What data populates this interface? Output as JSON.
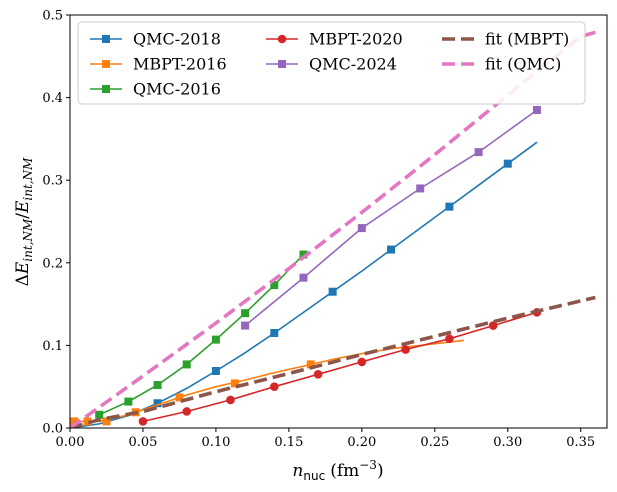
{
  "chart_data": {
    "type": "line",
    "xlabel_main": "n",
    "xlabel_sub": "nuc",
    "xlabel_unit": "(fm",
    "xlabel_exp": "−3",
    "xlabel_close": ")",
    "ylabel": "ΔE_{int,NM}/E_{int,NM}",
    "ylabel_delta": "Δ",
    "ylabel_E1": "E",
    "ylabel_sub1": "int,NM",
    "ylabel_slash": "/",
    "ylabel_E2": "E",
    "ylabel_sub2": "int,NM",
    "xlim": [
      0,
      0.368
    ],
    "ylim": [
      0,
      0.5
    ],
    "xticks": [
      0.0,
      0.05,
      0.1,
      0.15,
      0.2,
      0.25,
      0.3,
      0.35
    ],
    "xtick_labels": [
      "0.00",
      "0.05",
      "0.10",
      "0.15",
      "0.20",
      "0.25",
      "0.30",
      "0.35"
    ],
    "yticks": [
      0.0,
      0.1,
      0.2,
      0.3,
      0.4,
      0.5
    ],
    "ytick_labels": [
      "0.0",
      "0.1",
      "0.2",
      "0.3",
      "0.4",
      "0.5"
    ],
    "grid": false,
    "legend_position": "top",
    "series": [
      {
        "name": "QMC-2018",
        "color": "#1f77b4",
        "marker": "square",
        "style": "solid",
        "line_x": [
          0.0,
          0.02,
          0.04,
          0.06,
          0.08,
          0.1,
          0.12,
          0.14,
          0.16,
          0.18,
          0.2,
          0.22,
          0.24,
          0.26,
          0.28,
          0.3,
          0.32
        ],
        "line_y": [
          0.0,
          0.005,
          0.015,
          0.03,
          0.048,
          0.069,
          0.091,
          0.115,
          0.14,
          0.165,
          0.19,
          0.216,
          0.242,
          0.268,
          0.294,
          0.32,
          0.346
        ],
        "x": [
          0.06,
          0.1,
          0.14,
          0.18,
          0.22,
          0.26,
          0.3
        ],
        "y": [
          0.03,
          0.069,
          0.115,
          0.165,
          0.216,
          0.268,
          0.32
        ]
      },
      {
        "name": "MBPT-2016",
        "color": "#ff7f0e",
        "marker": "square",
        "style": "solid",
        "line_x": [
          0.0,
          0.02,
          0.04,
          0.06,
          0.08,
          0.1,
          0.12,
          0.14,
          0.16,
          0.18,
          0.2,
          0.22,
          0.24,
          0.26,
          0.27
        ],
        "line_y": [
          0.008,
          0.008,
          0.016,
          0.028,
          0.04,
          0.05,
          0.058,
          0.067,
          0.075,
          0.083,
          0.09,
          0.096,
          0.1,
          0.104,
          0.106
        ],
        "x": [
          0.003,
          0.012,
          0.025,
          0.045,
          0.075,
          0.113,
          0.165
        ],
        "y": [
          0.008,
          0.008,
          0.008,
          0.019,
          0.037,
          0.054,
          0.077
        ]
      },
      {
        "name": "QMC-2016",
        "color": "#2ca02c",
        "marker": "square",
        "style": "solid",
        "x": [
          0.02,
          0.04,
          0.06,
          0.08,
          0.1,
          0.12,
          0.14,
          0.16
        ],
        "y": [
          0.016,
          0.032,
          0.052,
          0.077,
          0.107,
          0.139,
          0.173,
          0.21
        ]
      },
      {
        "name": "MBPT-2020",
        "color": "#d62728",
        "marker": "circle",
        "style": "solid",
        "x": [
          0.05,
          0.08,
          0.11,
          0.14,
          0.17,
          0.2,
          0.23,
          0.26,
          0.29,
          0.32
        ],
        "y": [
          0.008,
          0.02,
          0.034,
          0.05,
          0.065,
          0.08,
          0.095,
          0.108,
          0.124,
          0.14
        ]
      },
      {
        "name": "QMC-2024",
        "color": "#9467bd",
        "marker": "square",
        "style": "solid",
        "x": [
          0.12,
          0.16,
          0.2,
          0.24,
          0.28,
          0.32
        ],
        "y": [
          0.124,
          0.182,
          0.242,
          0.29,
          0.334,
          0.385
        ]
      },
      {
        "name": "fit (MBPT)",
        "color": "#8c564b",
        "marker": "none",
        "style": "dashed",
        "line_x": [
          0.0,
          0.02,
          0.05,
          0.1,
          0.15,
          0.2,
          0.25,
          0.3,
          0.36
        ],
        "line_y": [
          0.0,
          0.01,
          0.02,
          0.044,
          0.066,
          0.089,
          0.111,
          0.133,
          0.158
        ]
      },
      {
        "name": "fit (QMC)",
        "color": "#e377c2",
        "marker": "none",
        "style": "dashed",
        "line_x": [
          0.0,
          0.05,
          0.1,
          0.15,
          0.2,
          0.25,
          0.3,
          0.35,
          0.36
        ],
        "line_y": [
          0.0,
          0.063,
          0.127,
          0.193,
          0.261,
          0.331,
          0.403,
          0.474,
          0.479
        ]
      }
    ]
  }
}
